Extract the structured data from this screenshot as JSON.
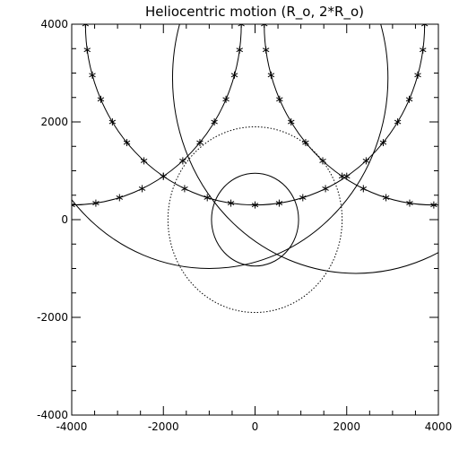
{
  "chart_data": {
    "type": "line",
    "title": "Heliocentric motion (R_o, 2*R_o)",
    "xlabel": "",
    "ylabel": "",
    "xlim": [
      -4000,
      4000
    ],
    "ylim": [
      -4000,
      4000
    ],
    "grid": false,
    "x_ticks": [
      -4000,
      -2000,
      0,
      2000,
      4000
    ],
    "y_ticks": [
      -4000,
      -2000,
      0,
      2000,
      4000
    ],
    "x_tick_labels": [
      "-4000",
      "-2000",
      "0",
      "2000",
      "4000"
    ],
    "y_tick_labels": [
      "-4000",
      "-2000",
      "0",
      "2000",
      "4000"
    ],
    "circles": [
      {
        "cx": 0,
        "cy": 0,
        "r": 950,
        "style": "solid"
      },
      {
        "cx": 0,
        "cy": 0,
        "r": 1900,
        "style": "dotted"
      }
    ],
    "arcs": [
      {
        "cx": -1000,
        "cy": 2900,
        "r": 3900
      },
      {
        "cx": 2200,
        "cy": 2900,
        "r": 4000
      }
    ],
    "loop_series": [
      {
        "cx": -4000,
        "cy": 4000,
        "r": 3700,
        "marker": "asterisk"
      },
      {
        "cx": 0,
        "cy": 4000,
        "r": 3700,
        "marker": "asterisk"
      },
      {
        "cx": 3900,
        "cy": 4000,
        "r": 3700,
        "marker": "asterisk"
      }
    ]
  }
}
